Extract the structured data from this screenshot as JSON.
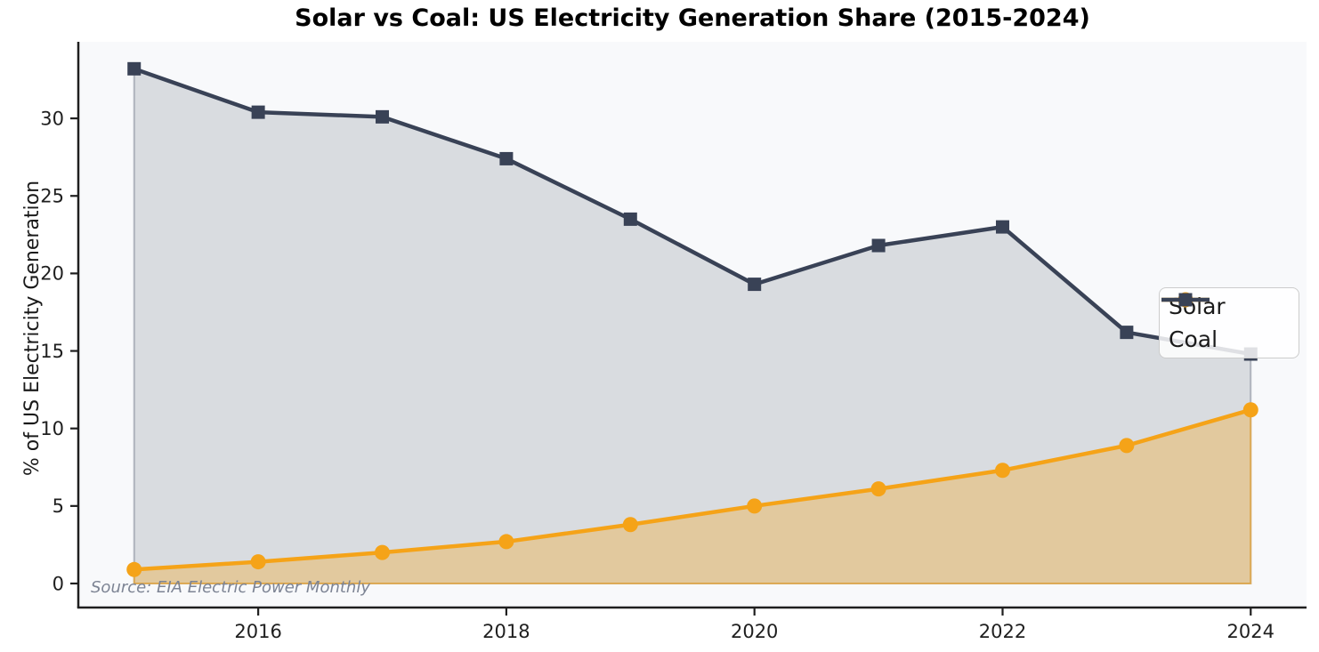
{
  "chart_data": {
    "type": "line",
    "title": "Solar vs Coal: US Electricity Generation Share (2015-2024)",
    "ylabel": "% of US Electricity Generation",
    "xlabel": "",
    "source_note": "Source: EIA Electric Power Monthly",
    "x": [
      2015,
      2016,
      2017,
      2018,
      2019,
      2020,
      2021,
      2022,
      2023,
      2024
    ],
    "series": [
      {
        "name": "Solar",
        "color": "#F5A318",
        "fill_alpha": 0.33,
        "marker": "circle",
        "values": [
          0.9,
          1.4,
          2.0,
          2.7,
          3.8,
          5.0,
          6.1,
          7.3,
          8.9,
          11.2
        ]
      },
      {
        "name": "Coal",
        "color": "#394256",
        "fill_alpha": 0.16,
        "marker": "square",
        "values": [
          33.2,
          30.4,
          30.1,
          27.4,
          23.5,
          19.3,
          21.8,
          23.0,
          16.2,
          14.8
        ]
      }
    ],
    "x_ticks": [
      2016,
      2018,
      2020,
      2022,
      2024
    ],
    "y_ticks": [
      0,
      5,
      10,
      15,
      20,
      25,
      30
    ],
    "xlim": [
      2014.55,
      2024.45
    ],
    "ylim": [
      -1.55,
      34.94
    ],
    "grid": false,
    "legend_position": "center right",
    "plot_bg": "#F8F9FB",
    "axis_color": "#1f1f1f",
    "tick_label_color": "#1f1f1f"
  }
}
